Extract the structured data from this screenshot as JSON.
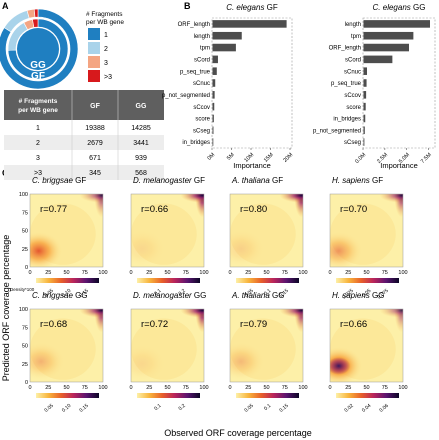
{
  "panels": {
    "a": "A",
    "b": "B",
    "c": "C"
  },
  "colors": {
    "gf_1": "#1f7fc1",
    "gf_2": "#a9d3ea",
    "gf_3": "#f4a582",
    "gf_4": "#d7191c",
    "bar": "#4d4d4d",
    "table_header": "#5f5f5f",
    "table_row_even": "#ededed"
  },
  "panel_a": {
    "legend_title": [
      "# Fragments",
      "per WB gene"
    ],
    "legend_labels": [
      "1",
      "2",
      "3",
      ">3"
    ],
    "ring_labels": {
      "inner": "GG",
      "outer": "GF"
    },
    "table": {
      "header": [
        "# Fragments\nper WB gene",
        "GF",
        "GG"
      ],
      "rows": [
        [
          "1",
          "19388",
          "14285"
        ],
        [
          "2",
          "2679",
          "3441"
        ],
        [
          "3",
          "671",
          "939"
        ],
        [
          ">3",
          "345",
          "568"
        ]
      ]
    }
  },
  "chart_data": [
    {
      "type": "pie",
      "title": "",
      "rings": [
        {
          "name": "GF",
          "values": [
            19388,
            2679,
            671,
            345
          ]
        },
        {
          "name": "GG",
          "values": [
            14285,
            3441,
            939,
            568
          ]
        }
      ],
      "labels": [
        "1",
        "2",
        "3",
        ">3"
      ],
      "legend": "right"
    },
    {
      "type": "bar",
      "orientation": "horizontal",
      "title": "C. elegans GF",
      "xlabel": "Importance",
      "categories": [
        "ORF_length",
        "length",
        "tpm",
        "sCord",
        "p_seq_true",
        "sCnuc",
        "p_not_segmented",
        "sCcov",
        "score",
        "sCseg",
        "in_bridges"
      ],
      "values": [
        19000000,
        7500000,
        6000000,
        1400000,
        1100000,
        700000,
        550000,
        450000,
        350000,
        250000,
        150000
      ],
      "xlim": [
        0,
        20000000
      ],
      "xticks": [
        "0M",
        "5M",
        "10M",
        "15M",
        "20M"
      ]
    },
    {
      "type": "bar",
      "orientation": "horizontal",
      "title": "C. elegans GG",
      "xlabel": "Importance",
      "categories": [
        "length",
        "tpm",
        "ORF_length",
        "sCord",
        "sCnuc",
        "p_seq_true",
        "sCcov",
        "score",
        "in_bridges",
        "p_not_segmented",
        "sCseg"
      ],
      "values": [
        7600000,
        5700000,
        5200000,
        3300000,
        400000,
        350000,
        300000,
        250000,
        200000,
        150000,
        100000
      ],
      "xlim": [
        0,
        8000000
      ],
      "xticks": [
        "0.0M",
        "2.5M",
        "5.0M",
        "7.5M"
      ]
    },
    {
      "type": "heatmap",
      "xlabel": "Observed ORF coverage percentage",
      "ylabel": "Predicted ORF coverage percentage",
      "xticks": [
        "0",
        "25",
        "50",
        "75",
        "100"
      ],
      "yticks": [
        "0",
        "25",
        "50",
        "75",
        "100"
      ],
      "colorbar_title": "Density*100",
      "panels": [
        {
          "title": "C. briggsae GF",
          "r": "r=0.77",
          "peak_low": [
            12,
            22
          ],
          "weight_low": 0.85,
          "weight_high": 0.7,
          "cbar_ticks": [
            "0.05",
            "0.10",
            "0.15"
          ]
        },
        {
          "title": "D. melanogaster GF",
          "r": "r=0.66",
          "peak_low": [
            15,
            25
          ],
          "weight_low": 0.0,
          "weight_high": 1.0,
          "cbar_ticks": [
            "0.1",
            "0.2"
          ]
        },
        {
          "title": "A. thaliana GF",
          "r": "r=0.80",
          "peak_low": [
            15,
            25
          ],
          "weight_low": 0.05,
          "weight_high": 1.0,
          "cbar_ticks": [
            "0.05",
            "0.1",
            "0.15"
          ]
        },
        {
          "title": "H. sapiens GF",
          "r": "r=0.70",
          "peak_low": [
            12,
            22
          ],
          "weight_low": 0.45,
          "weight_high": 0.8,
          "cbar_ticks": [
            "0.025",
            "0.05",
            "0.075"
          ]
        },
        {
          "title": "C. briggsae GG",
          "r": "r=0.68",
          "peak_low": [
            15,
            28
          ],
          "weight_low": 0.25,
          "weight_high": 0.9,
          "cbar_ticks": [
            "0.05",
            "0.10",
            "0.15"
          ]
        },
        {
          "title": "D. melanogaster GG",
          "r": "r=0.72",
          "peak_low": [
            15,
            25
          ],
          "weight_low": 0.0,
          "weight_high": 1.0,
          "cbar_ticks": [
            "0.1",
            "0.2"
          ]
        },
        {
          "title": "A. thaliana GG",
          "r": "r=0.79",
          "peak_low": [
            15,
            28
          ],
          "weight_low": 0.2,
          "weight_high": 0.9,
          "cbar_ticks": [
            "0.05",
            "0.1",
            "0.15"
          ]
        },
        {
          "title": "H. sapiens GG",
          "r": "r=0.66",
          "peak_low": [
            12,
            22
          ],
          "weight_low": 1.0,
          "weight_high": 0.6,
          "cbar_ticks": [
            "0.02",
            "0.04",
            "0.06"
          ]
        }
      ]
    }
  ]
}
